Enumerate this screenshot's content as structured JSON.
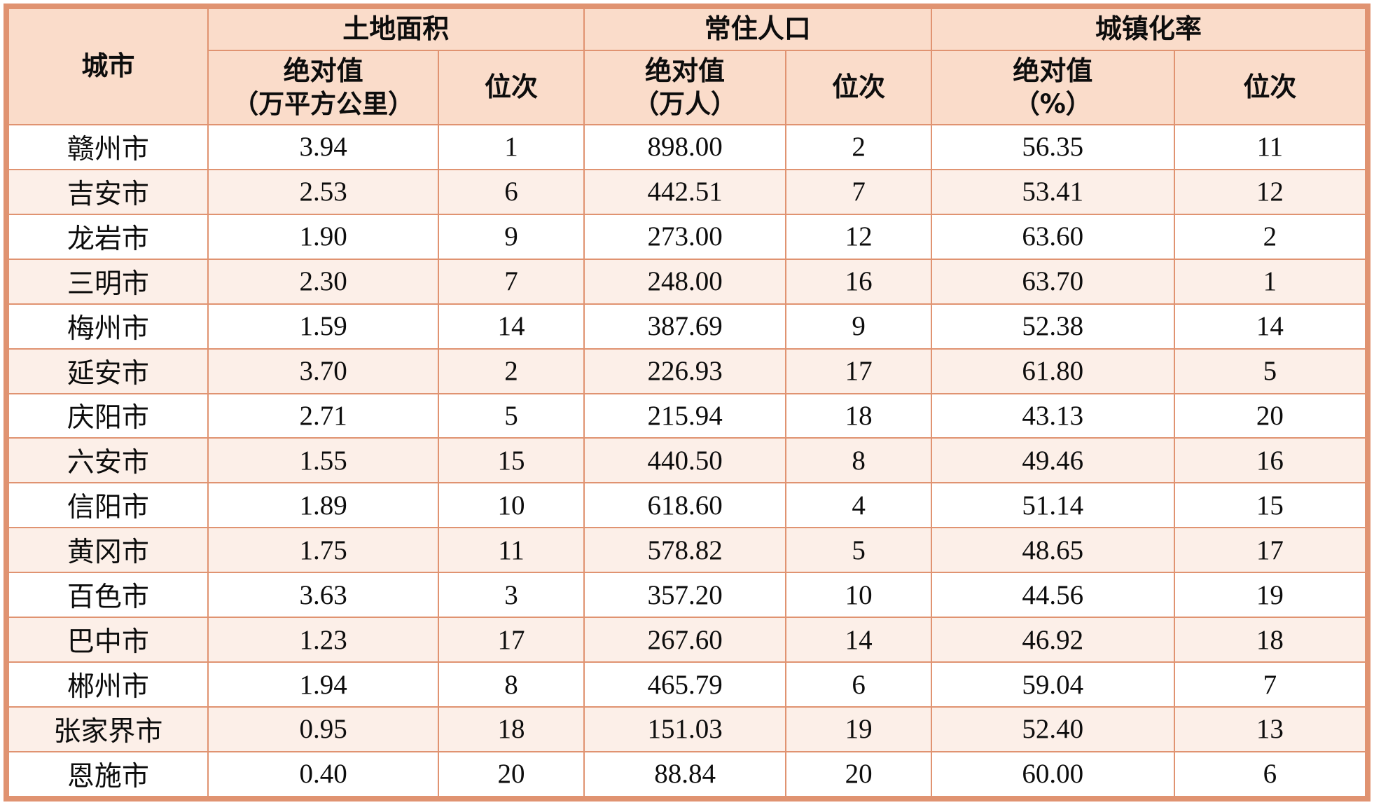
{
  "table": {
    "header": {
      "city": "城市",
      "groups": [
        {
          "title": "土地面积",
          "abs": "绝对值",
          "unit": "（万平方公里）",
          "rank": "位次"
        },
        {
          "title": "常住人口",
          "abs": "绝对值",
          "unit": "（万人）",
          "rank": "位次"
        },
        {
          "title": "城镇化率",
          "abs": "绝对值",
          "unit": "（%）",
          "rank": "位次"
        }
      ]
    },
    "rows": [
      [
        "赣州市",
        "3.94",
        "1",
        "898.00",
        "2",
        "56.35",
        "11"
      ],
      [
        "吉安市",
        "2.53",
        "6",
        "442.51",
        "7",
        "53.41",
        "12"
      ],
      [
        "龙岩市",
        "1.90",
        "9",
        "273.00",
        "12",
        "63.60",
        "2"
      ],
      [
        "三明市",
        "2.30",
        "7",
        "248.00",
        "16",
        "63.70",
        "1"
      ],
      [
        "梅州市",
        "1.59",
        "14",
        "387.69",
        "9",
        "52.38",
        "14"
      ],
      [
        "延安市",
        "3.70",
        "2",
        "226.93",
        "17",
        "61.80",
        "5"
      ],
      [
        "庆阳市",
        "2.71",
        "5",
        "215.94",
        "18",
        "43.13",
        "20"
      ],
      [
        "六安市",
        "1.55",
        "15",
        "440.50",
        "8",
        "49.46",
        "16"
      ],
      [
        "信阳市",
        "1.89",
        "10",
        "618.60",
        "4",
        "51.14",
        "15"
      ],
      [
        "黄冈市",
        "1.75",
        "11",
        "578.82",
        "5",
        "48.65",
        "17"
      ],
      [
        "百色市",
        "3.63",
        "3",
        "357.20",
        "10",
        "44.56",
        "19"
      ],
      [
        "巴中市",
        "1.23",
        "17",
        "267.60",
        "14",
        "46.92",
        "18"
      ],
      [
        "郴州市",
        "1.94",
        "8",
        "465.79",
        "6",
        "59.04",
        "7"
      ],
      [
        "张家界市",
        "0.95",
        "18",
        "151.03",
        "19",
        "52.40",
        "13"
      ],
      [
        "恩施市",
        "0.40",
        "20",
        "88.84",
        "20",
        "60.00",
        "6"
      ]
    ]
  },
  "colors": {
    "border": "#E09371",
    "header_bg": "#FADCCA",
    "row_alt_bg": "#FCEFE8",
    "row_bg": "#FFFFFF",
    "text": "#0D0D0D"
  },
  "chart_data": {
    "type": "table",
    "title": "",
    "columns": [
      "城市",
      "土地面积 绝对值（万平方公里）",
      "土地面积 位次",
      "常住人口 绝对值（万人）",
      "常住人口 位次",
      "城镇化率 绝对值（%）",
      "城镇化率 位次"
    ],
    "rows": [
      [
        "赣州市",
        3.94,
        1,
        898.0,
        2,
        56.35,
        11
      ],
      [
        "吉安市",
        2.53,
        6,
        442.51,
        7,
        53.41,
        12
      ],
      [
        "龙岩市",
        1.9,
        9,
        273.0,
        12,
        63.6,
        2
      ],
      [
        "三明市",
        2.3,
        7,
        248.0,
        16,
        63.7,
        1
      ],
      [
        "梅州市",
        1.59,
        14,
        387.69,
        9,
        52.38,
        14
      ],
      [
        "延安市",
        3.7,
        2,
        226.93,
        17,
        61.8,
        5
      ],
      [
        "庆阳市",
        2.71,
        5,
        215.94,
        18,
        43.13,
        20
      ],
      [
        "六安市",
        1.55,
        15,
        440.5,
        8,
        49.46,
        16
      ],
      [
        "信阳市",
        1.89,
        10,
        618.6,
        4,
        51.14,
        15
      ],
      [
        "黄冈市",
        1.75,
        11,
        578.82,
        5,
        48.65,
        17
      ],
      [
        "百色市",
        3.63,
        3,
        357.2,
        10,
        44.56,
        19
      ],
      [
        "巴中市",
        1.23,
        17,
        267.6,
        14,
        46.92,
        18
      ],
      [
        "郴州市",
        1.94,
        8,
        465.79,
        6,
        59.04,
        7
      ],
      [
        "张家界市",
        0.95,
        18,
        151.03,
        19,
        52.4,
        13
      ],
      [
        "恩施市",
        0.4,
        20,
        88.84,
        20,
        60.0,
        6
      ]
    ]
  }
}
